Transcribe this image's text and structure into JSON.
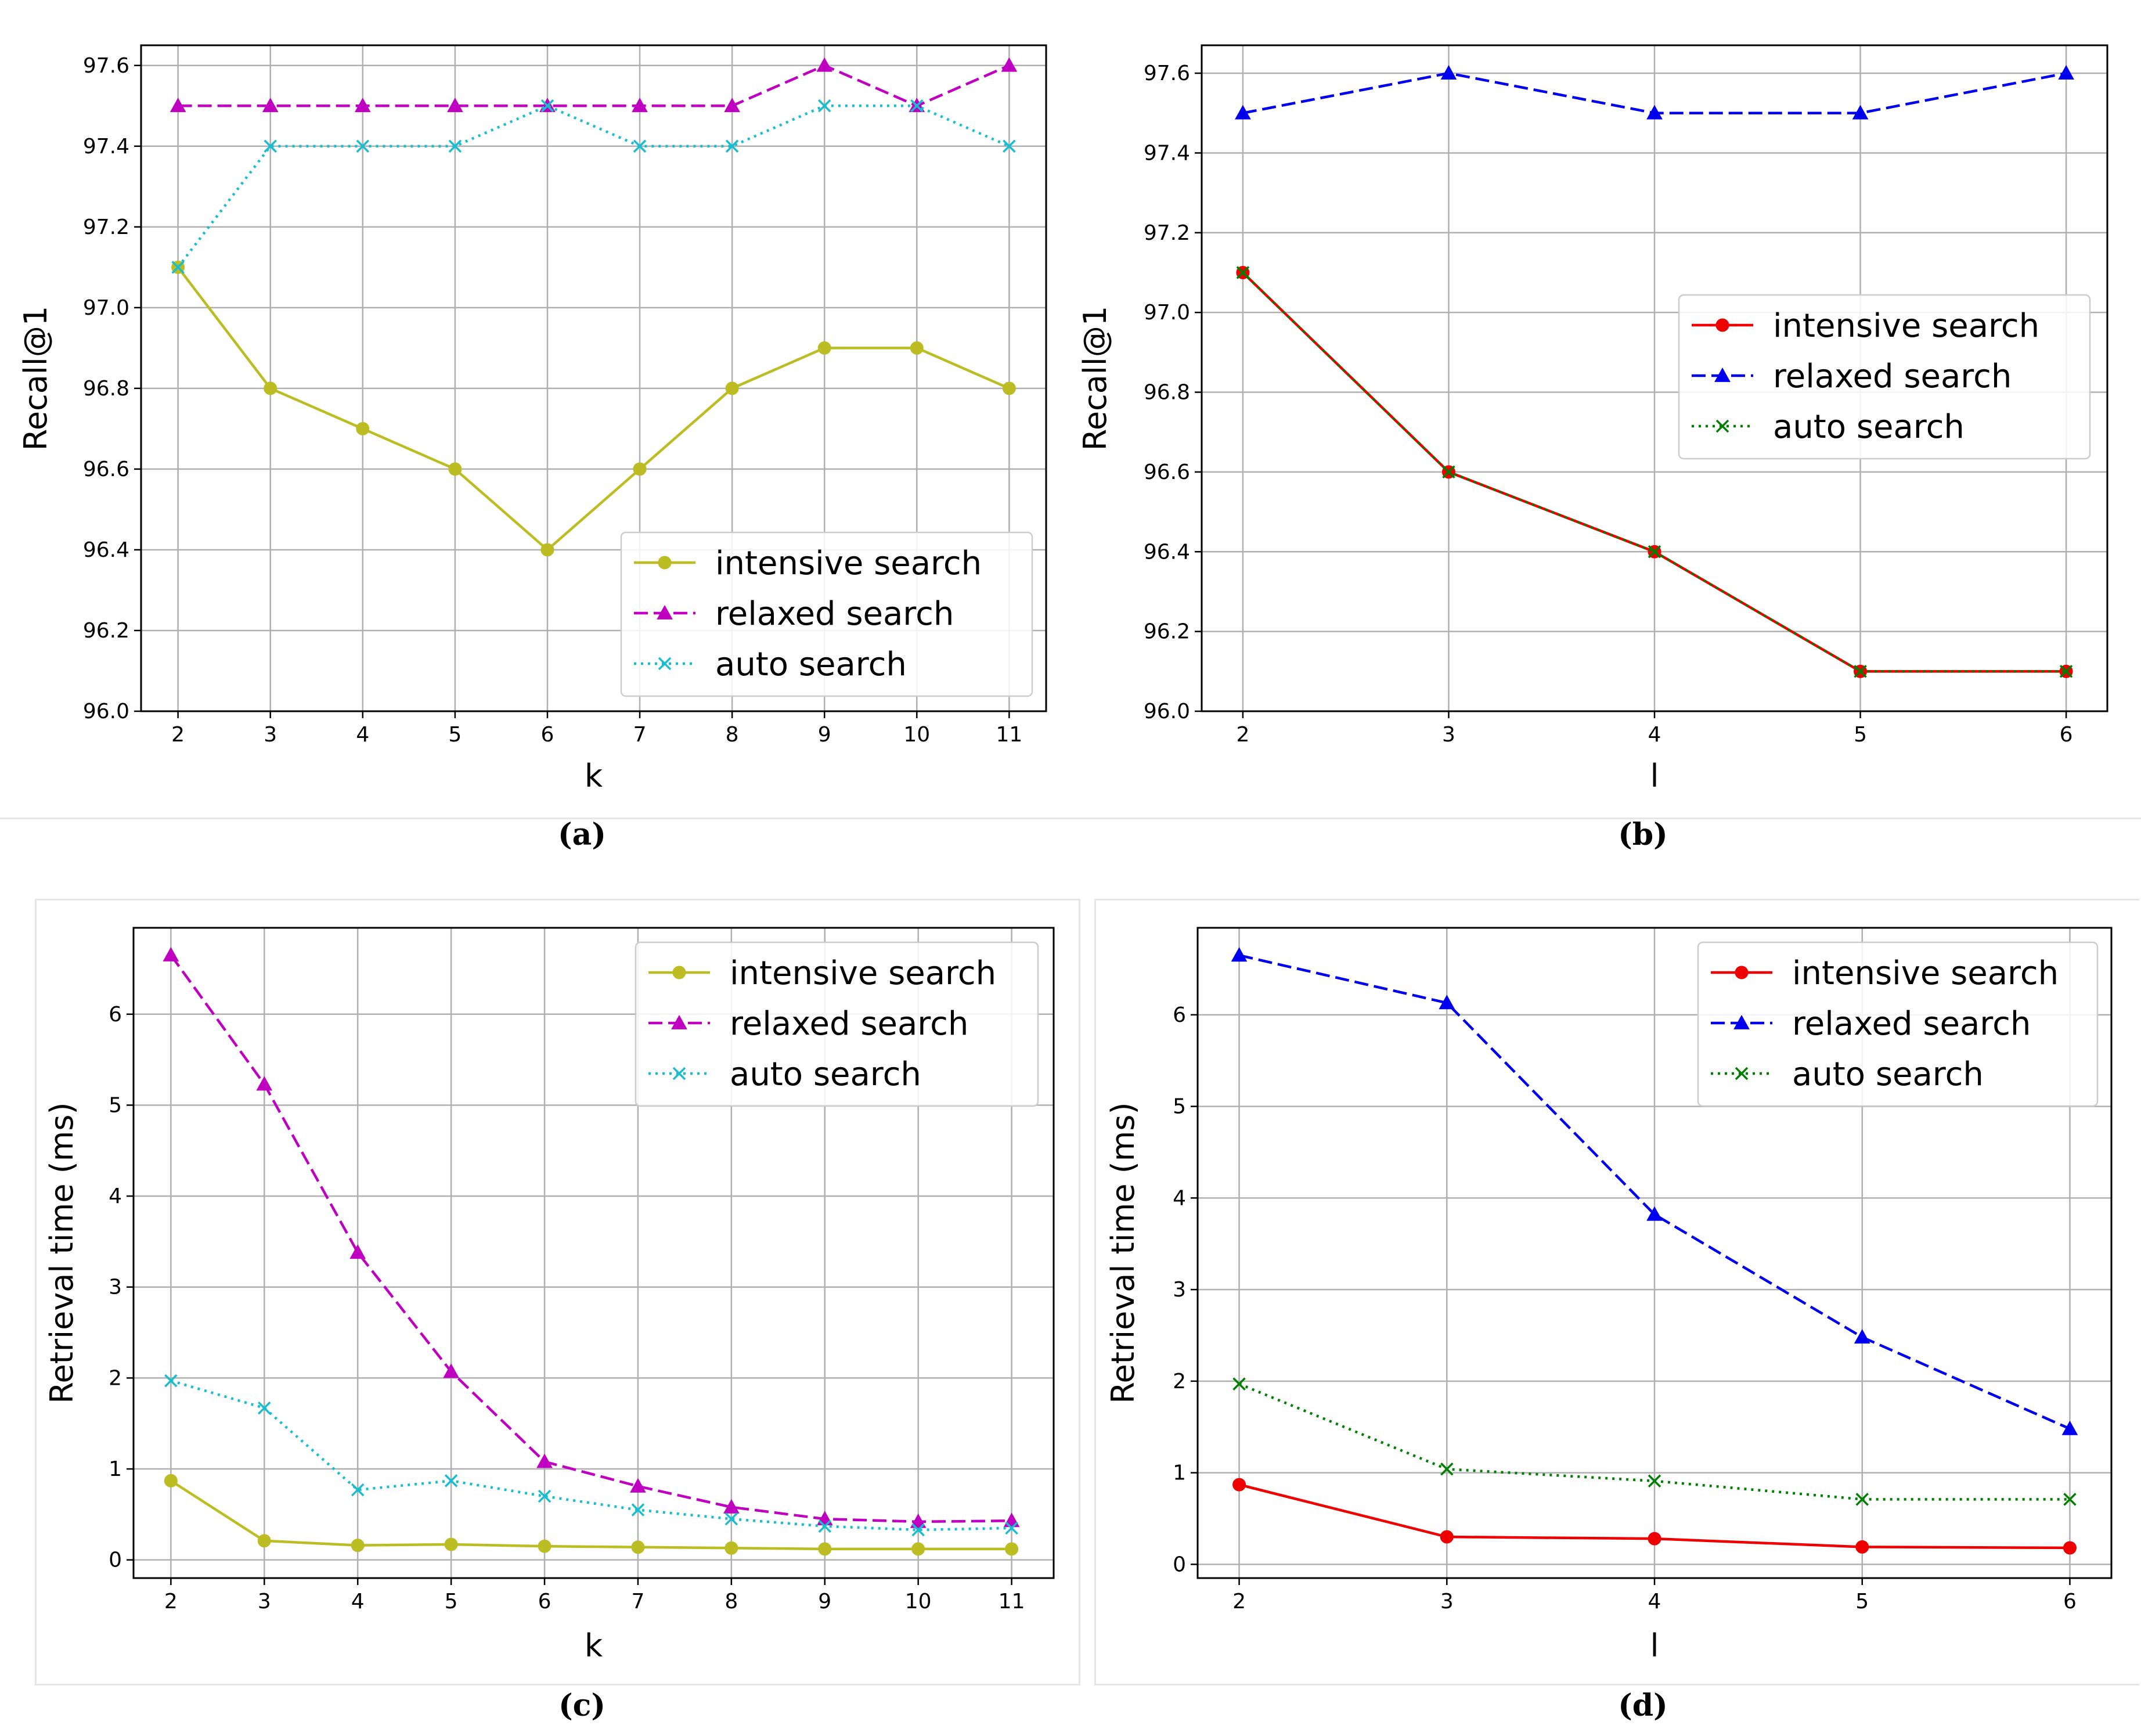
{
  "colors": {
    "yellow": "#bcbd22",
    "magenta": "#c000c0",
    "cyan": "#17becf",
    "red": "#ee0000",
    "blue": "#0000ee",
    "green": "#008000",
    "grid": "#b0b0b0"
  },
  "chart_data": [
    {
      "type": "line",
      "panel_label": "(a)",
      "xlabel": "k",
      "ylabel": "Recall@1",
      "x": [
        2,
        3,
        4,
        5,
        6,
        7,
        8,
        9,
        10,
        11
      ],
      "xlim": [
        1.6,
        11.4
      ],
      "ylim": [
        96.0,
        97.65
      ],
      "yticks": [
        96.0,
        96.2,
        96.4,
        96.6,
        96.8,
        97.0,
        97.2,
        97.4,
        97.6
      ],
      "ytick_labels": [
        "96.0",
        "96.2",
        "96.4",
        "96.6",
        "96.8",
        "97.0",
        "97.2",
        "97.4",
        "97.6"
      ],
      "legend_position": "lower-right",
      "series": [
        {
          "name": "intensive search",
          "color": "#bcbd22",
          "style": "solid",
          "marker": "circle",
          "values": [
            97.1,
            96.8,
            96.7,
            96.6,
            96.4,
            96.6,
            96.8,
            96.9,
            96.9,
            96.8
          ]
        },
        {
          "name": "relaxed search",
          "color": "#c000c0",
          "style": "dashed",
          "marker": "triangle",
          "values": [
            97.5,
            97.5,
            97.5,
            97.5,
            97.5,
            97.5,
            97.5,
            97.6,
            97.5,
            97.6
          ]
        },
        {
          "name": "auto search",
          "color": "#17becf",
          "style": "dotted",
          "marker": "x",
          "values": [
            97.1,
            97.4,
            97.4,
            97.4,
            97.5,
            97.4,
            97.4,
            97.5,
            97.5,
            97.4
          ]
        }
      ]
    },
    {
      "type": "line",
      "panel_label": "(b)",
      "xlabel": "l",
      "ylabel": "Recall@1",
      "x": [
        2,
        3,
        4,
        5,
        6
      ],
      "xlim": [
        1.8,
        6.2
      ],
      "ylim": [
        96.0,
        97.67
      ],
      "yticks": [
        96.0,
        96.2,
        96.4,
        96.6,
        96.8,
        97.0,
        97.2,
        97.4,
        97.6
      ],
      "ytick_labels": [
        "96.0",
        "96.2",
        "96.4",
        "96.6",
        "96.8",
        "97.0",
        "97.2",
        "97.4",
        "97.6"
      ],
      "legend_position": "center-right",
      "series": [
        {
          "name": "intensive search",
          "color": "#ee0000",
          "style": "solid",
          "marker": "circle",
          "values": [
            97.1,
            96.6,
            96.4,
            96.1,
            96.1
          ]
        },
        {
          "name": "relaxed search",
          "color": "#0000ee",
          "style": "dashed",
          "marker": "triangle",
          "values": [
            97.5,
            97.6,
            97.5,
            97.5,
            97.6
          ]
        },
        {
          "name": "auto search",
          "color": "#008000",
          "style": "dotted",
          "marker": "x",
          "values": [
            97.1,
            96.6,
            96.4,
            96.1,
            96.1
          ]
        }
      ]
    },
    {
      "type": "line",
      "panel_label": "(c)",
      "xlabel": "k",
      "ylabel": "Retrieval time (ms)",
      "x": [
        2,
        3,
        4,
        5,
        6,
        7,
        8,
        9,
        10,
        11
      ],
      "xlim": [
        1.6,
        11.45
      ],
      "ylim": [
        -0.2,
        6.95
      ],
      "yticks": [
        0,
        1,
        2,
        3,
        4,
        5,
        6
      ],
      "ytick_labels": [
        "0",
        "1",
        "2",
        "3",
        "4",
        "5",
        "6"
      ],
      "legend_position": "top-right",
      "series": [
        {
          "name": "intensive search",
          "color": "#bcbd22",
          "style": "solid",
          "marker": "circle",
          "values": [
            0.87,
            0.21,
            0.16,
            0.17,
            0.15,
            0.14,
            0.13,
            0.12,
            0.12,
            0.12
          ]
        },
        {
          "name": "relaxed search",
          "color": "#c000c0",
          "style": "dashed",
          "marker": "triangle",
          "values": [
            6.65,
            5.23,
            3.38,
            2.07,
            1.08,
            0.81,
            0.58,
            0.45,
            0.42,
            0.43
          ]
        },
        {
          "name": "auto search",
          "color": "#17becf",
          "style": "dotted",
          "marker": "x",
          "values": [
            1.97,
            1.67,
            0.77,
            0.87,
            0.7,
            0.55,
            0.45,
            0.37,
            0.33,
            0.35
          ]
        }
      ]
    },
    {
      "type": "line",
      "panel_label": "(d)",
      "xlabel": "l",
      "ylabel": "Retrieval time (ms)",
      "x": [
        2,
        3,
        4,
        5,
        6
      ],
      "xlim": [
        1.8,
        6.2
      ],
      "ylim": [
        -0.15,
        6.95
      ],
      "yticks": [
        0,
        1,
        2,
        3,
        4,
        5,
        6
      ],
      "ytick_labels": [
        "0",
        "1",
        "2",
        "3",
        "4",
        "5",
        "6"
      ],
      "legend_position": "top-right",
      "series": [
        {
          "name": "intensive search",
          "color": "#ee0000",
          "style": "solid",
          "marker": "circle",
          "values": [
            0.87,
            0.3,
            0.28,
            0.19,
            0.18
          ]
        },
        {
          "name": "relaxed search",
          "color": "#0000ee",
          "style": "dashed",
          "marker": "triangle",
          "values": [
            6.65,
            6.13,
            3.82,
            2.48,
            1.48
          ]
        },
        {
          "name": "auto search",
          "color": "#008000",
          "style": "dotted",
          "marker": "x",
          "values": [
            1.97,
            1.04,
            0.91,
            0.71,
            0.71
          ]
        }
      ]
    }
  ]
}
